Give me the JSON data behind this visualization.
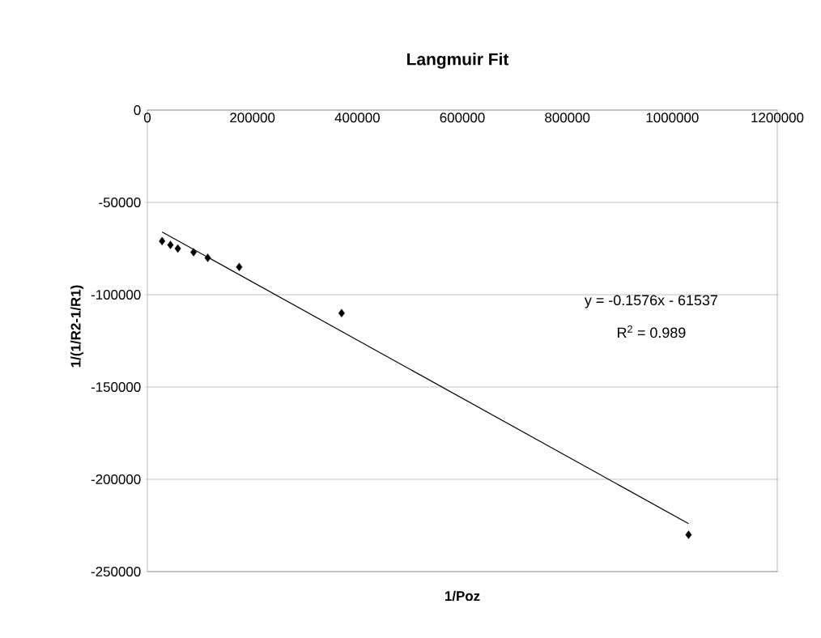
{
  "chart_data": {
    "type": "scatter",
    "title": "Langmuir Fit",
    "xlabel": "1/Poz",
    "ylabel": "1/(1/R2-1/R1)",
    "series": [
      {
        "color": "#000000",
        "marker": "diamond",
        "x": [
          28000,
          44000,
          58000,
          88000,
          115000,
          175000,
          370000,
          1031000
        ],
        "values": [
          -71000,
          -73000,
          -75000,
          -77000,
          -80000,
          -85000,
          -110000,
          -230000
        ]
      },
      {
        "type": "line",
        "color": "#000000",
        "marker": "none",
        "x": [
          28000,
          1031000
        ],
        "values": [
          -66000,
          -224000
        ]
      }
    ],
    "annotations": [
      "y = -0.1576x - 61537",
      "R$^{2}$ = 0.989"
    ],
    "xlim": [
      0,
      1200000
    ],
    "xticks": [
      0,
      200000,
      400000,
      600000,
      800000,
      1000000,
      1200000
    ],
    "ylim": [
      -250000,
      0
    ],
    "yticks": [
      -250000,
      -200000,
      -150000,
      -100000,
      -50000,
      0
    ],
    "grid": "y"
  }
}
